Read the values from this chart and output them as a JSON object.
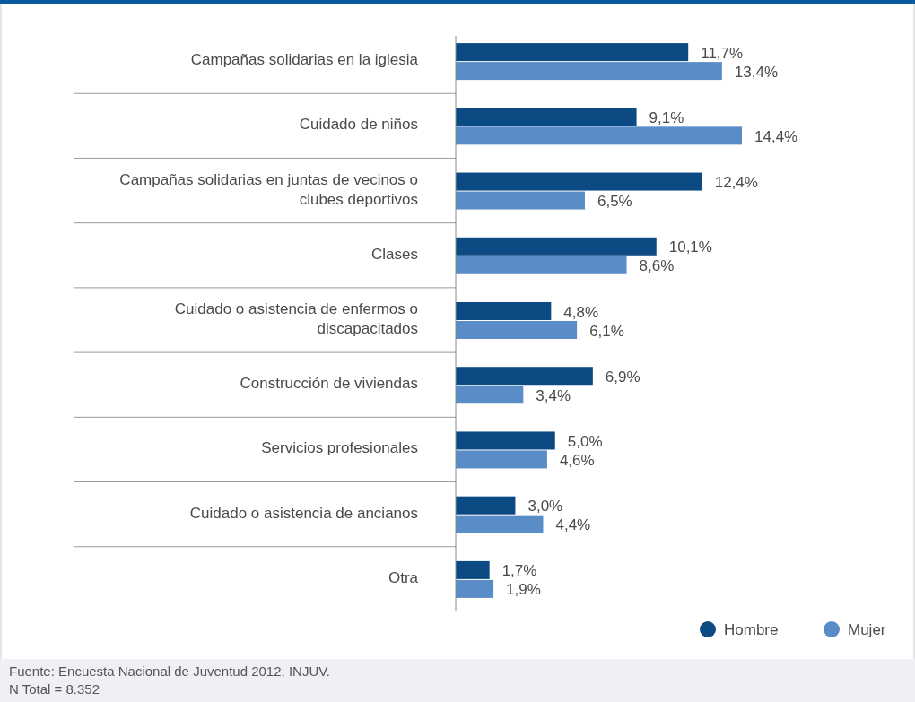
{
  "chart_data": {
    "type": "bar",
    "orientation": "horizontal",
    "legend": "bottom right",
    "categories": [
      "Campañas solidarias en la iglesia",
      "Cuidado de niños",
      "Campañas solidarias en juntas de vecinos o clubes deportivos",
      "Clases",
      "Cuidado o asistencia de enfermos o discapacitados",
      "Construcción de viviendas",
      "Servicios profesionales",
      "Cuidado o asistencia de ancianos",
      "Otra"
    ],
    "series": [
      {
        "name": "Hombre",
        "color": "#0b4a82",
        "values": [
          11.7,
          9.1,
          12.4,
          10.1,
          4.8,
          6.9,
          5.0,
          3.0,
          1.7
        ],
        "value_labels": [
          "11,7%",
          "9,1%",
          "12,4%",
          "10,1%",
          "4,8%",
          "6,9%",
          "5,0%",
          "3,0%",
          "1,7%"
        ]
      },
      {
        "name": "Mujer",
        "color": "#5a8cc8",
        "values": [
          13.4,
          14.4,
          6.5,
          8.6,
          6.1,
          3.4,
          4.6,
          4.4,
          1.9
        ],
        "value_labels": [
          "13,4%",
          "14,4%",
          "6,5%",
          "8,6%",
          "6,1%",
          "3,4%",
          "4,6%",
          "4,4%",
          "1,9%"
        ]
      }
    ],
    "annotations": [
      "Fuente: Encuesta Nacional de Juventud 2012, INJUV.",
      "N Total = 8.352"
    ]
  }
}
